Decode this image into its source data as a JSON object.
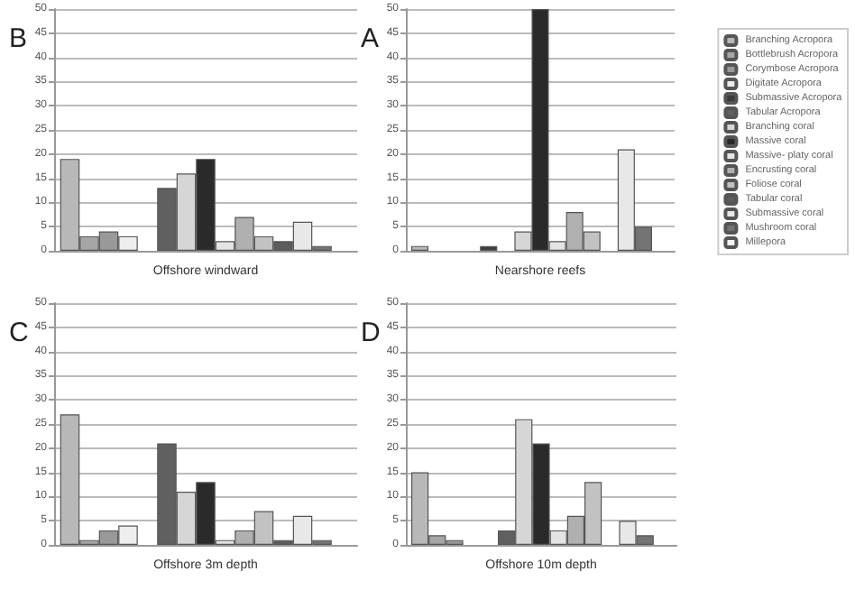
{
  "chart_data": [
    {
      "type": "bar",
      "title": "B",
      "categories": [
        "Offshore windward"
      ],
      "ylim": [
        0,
        50
      ],
      "yticks": [
        0,
        5,
        10,
        15,
        20,
        25,
        30,
        35,
        40,
        45,
        50
      ],
      "grid": "y",
      "series": [
        {
          "color": "#b8b8b8",
          "values": [
            19
          ]
        },
        {
          "color": "#a6a6a6",
          "values": [
            3
          ]
        },
        {
          "color": "#999999",
          "values": [
            4
          ]
        },
        {
          "color": "#eeeeee",
          "values": [
            3
          ]
        },
        {
          "color": "#3c3c3c",
          "values": [
            0
          ]
        },
        {
          "color": "#606060",
          "values": [
            13
          ]
        },
        {
          "color": "#d6d6d6",
          "values": [
            16
          ]
        },
        {
          "color": "#2a2a2a",
          "values": [
            19
          ]
        },
        {
          "color": "#e4e4e4",
          "values": [
            2
          ]
        },
        {
          "color": "#b0b0b0",
          "values": [
            7
          ]
        },
        {
          "color": "#c2c2c2",
          "values": [
            3
          ]
        },
        {
          "color": "#5c5c5c",
          "values": [
            2
          ]
        },
        {
          "color": "#e8e8e8",
          "values": [
            6
          ]
        },
        {
          "color": "#747474",
          "values": [
            1
          ]
        },
        {
          "color": "#f4f4f4",
          "values": [
            0
          ]
        }
      ]
    },
    {
      "type": "bar",
      "title": "A",
      "categories": [
        "Nearshore reefs"
      ],
      "ylim": [
        0,
        50
      ],
      "yticks": [
        0,
        5,
        10,
        15,
        20,
        25,
        30,
        35,
        40,
        45,
        50
      ],
      "grid": "y",
      "legend": "right",
      "series": [
        {
          "name": "Branching Acropora",
          "color": "#b8b8b8",
          "values": [
            1
          ]
        },
        {
          "name": "Bottlebrush Acropora",
          "color": "#a6a6a6",
          "values": [
            0
          ]
        },
        {
          "name": "Corymbose Acropora",
          "color": "#999999",
          "values": [
            0
          ]
        },
        {
          "name": "Digitate Acropora",
          "color": "#eeeeee",
          "values": [
            0
          ]
        },
        {
          "name": "Submassive Acropora",
          "color": "#3c3c3c",
          "values": [
            1
          ]
        },
        {
          "name": "Tabular Acropora",
          "color": "#606060",
          "values": [
            0
          ]
        },
        {
          "name": "Branching coral",
          "color": "#d6d6d6",
          "values": [
            4
          ]
        },
        {
          "name": "Massive coral",
          "color": "#2a2a2a",
          "values": [
            50
          ]
        },
        {
          "name": "Massive- platy coral",
          "color": "#e4e4e4",
          "values": [
            2
          ]
        },
        {
          "name": "Encrusting coral",
          "color": "#b0b0b0",
          "values": [
            8
          ]
        },
        {
          "name": "Foliose coral",
          "color": "#c2c2c2",
          "values": [
            4
          ]
        },
        {
          "name": "Tabular coral",
          "color": "#5c5c5c",
          "values": [
            0
          ]
        },
        {
          "name": "Submassive coral",
          "color": "#e8e8e8",
          "values": [
            21
          ]
        },
        {
          "name": "Mushroom coral",
          "color": "#747474",
          "values": [
            5
          ]
        },
        {
          "name": "Millepora",
          "color": "#f4f4f4",
          "values": [
            0
          ]
        }
      ]
    },
    {
      "type": "bar",
      "title": "C",
      "categories": [
        "Offshore 3m depth"
      ],
      "ylim": [
        0,
        50
      ],
      "yticks": [
        0,
        5,
        10,
        15,
        20,
        25,
        30,
        35,
        40,
        45,
        50
      ],
      "grid": "y",
      "series": [
        {
          "color": "#b8b8b8",
          "values": [
            27
          ]
        },
        {
          "color": "#a6a6a6",
          "values": [
            1
          ]
        },
        {
          "color": "#999999",
          "values": [
            3
          ]
        },
        {
          "color": "#eeeeee",
          "values": [
            4
          ]
        },
        {
          "color": "#3c3c3c",
          "values": [
            0
          ]
        },
        {
          "color": "#606060",
          "values": [
            21
          ]
        },
        {
          "color": "#d6d6d6",
          "values": [
            11
          ]
        },
        {
          "color": "#2a2a2a",
          "values": [
            13
          ]
        },
        {
          "color": "#e4e4e4",
          "values": [
            1
          ]
        },
        {
          "color": "#b0b0b0",
          "values": [
            3
          ]
        },
        {
          "color": "#c2c2c2",
          "values": [
            7
          ]
        },
        {
          "color": "#5c5c5c",
          "values": [
            1
          ]
        },
        {
          "color": "#e8e8e8",
          "values": [
            6
          ]
        },
        {
          "color": "#747474",
          "values": [
            1
          ]
        },
        {
          "color": "#f4f4f4",
          "values": [
            0
          ]
        }
      ]
    },
    {
      "type": "bar",
      "title": "D",
      "categories": [
        "Offshore 10m depth"
      ],
      "ylim": [
        0,
        50
      ],
      "yticks": [
        0,
        5,
        10,
        15,
        20,
        25,
        30,
        35,
        40,
        45,
        50
      ],
      "grid": "y",
      "series": [
        {
          "color": "#b8b8b8",
          "values": [
            15
          ]
        },
        {
          "color": "#a6a6a6",
          "values": [
            2
          ]
        },
        {
          "color": "#999999",
          "values": [
            1
          ]
        },
        {
          "color": "#eeeeee",
          "values": [
            0
          ]
        },
        {
          "color": "#3c3c3c",
          "values": [
            0
          ]
        },
        {
          "color": "#606060",
          "values": [
            3
          ]
        },
        {
          "color": "#d6d6d6",
          "values": [
            26
          ]
        },
        {
          "color": "#2a2a2a",
          "values": [
            21
          ]
        },
        {
          "color": "#e4e4e4",
          "values": [
            3
          ]
        },
        {
          "color": "#b0b0b0",
          "values": [
            6
          ]
        },
        {
          "color": "#c2c2c2",
          "values": [
            13
          ]
        },
        {
          "color": "#5c5c5c",
          "values": [
            0
          ]
        },
        {
          "color": "#e8e8e8",
          "values": [
            5
          ]
        },
        {
          "color": "#747474",
          "values": [
            2
          ]
        },
        {
          "color": "#f4f4f4",
          "values": [
            0
          ]
        }
      ]
    }
  ]
}
